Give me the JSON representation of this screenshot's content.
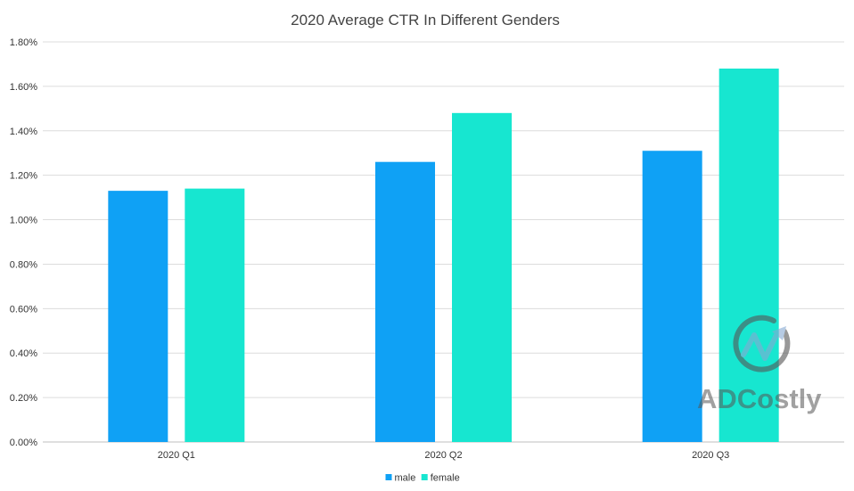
{
  "chart_data": {
    "type": "bar",
    "title": "2020 Average CTR In Different Genders",
    "categories": [
      "2020 Q1",
      "2020 Q2",
      "2020 Q3"
    ],
    "series": [
      {
        "name": "male",
        "values": [
          1.13,
          1.26,
          1.31
        ],
        "color": "#0fa1f5"
      },
      {
        "name": "female",
        "values": [
          1.14,
          1.48,
          1.68
        ],
        "color": "#17e6d0"
      }
    ],
    "ylim": [
      0,
      1.8
    ],
    "yticks": [
      "0.00%",
      "0.20%",
      "0.40%",
      "0.60%",
      "0.80%",
      "1.00%",
      "1.20%",
      "1.40%",
      "1.60%",
      "1.80%"
    ],
    "ytick_values": [
      0,
      0.2,
      0.4,
      0.6,
      0.8,
      1.0,
      1.2,
      1.4,
      1.6,
      1.8
    ],
    "grid": true,
    "legend": "bottom-center",
    "xlabel": "",
    "ylabel": ""
  },
  "watermark": {
    "text": "ADCostly",
    "icon": "adcostly-logo-icon"
  }
}
